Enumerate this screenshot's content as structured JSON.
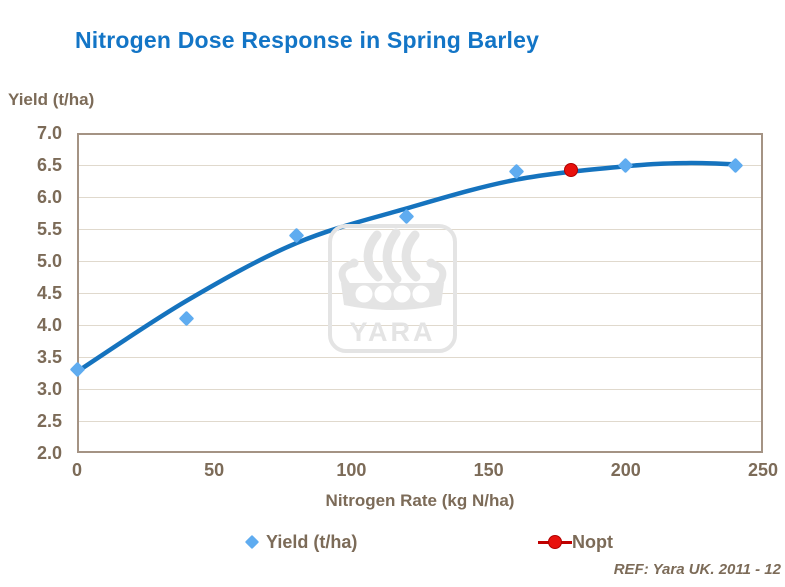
{
  "watermark": {
    "text": "YARA"
  },
  "footer": {
    "ref": "REF: Yara UK. 2011 - 12"
  },
  "colors": {
    "title_blue": "#1375C6",
    "curve_blue": "#1573BE",
    "yield_marker_blue": "#5FACF0",
    "nopt_red": "#E8110D",
    "nopt_line_red": "#C00000",
    "axis_text_brown": "#7C6B58",
    "plot_border": "#A49384",
    "gridline": "#E0D9CD",
    "watermark_gray": "#E4E4E4"
  },
  "chart_data": {
    "type": "scatter",
    "title": "Nitrogen Dose Response in Spring Barley",
    "xlabel": "Nitrogen Rate (kg N/ha)",
    "ylabel": "Yield (t/ha)",
    "xlim": [
      0,
      250
    ],
    "ylim": [
      2.0,
      7.0
    ],
    "x_ticks": [
      "0",
      "50",
      "100",
      "150",
      "200",
      "250"
    ],
    "y_ticks": [
      "7.0",
      "6.5",
      "6.0",
      "5.5",
      "5.0",
      "4.5",
      "4.0",
      "3.5",
      "3.0",
      "2.5",
      "2.0"
    ],
    "grid": "horizontal",
    "legend_position": "bottom",
    "series": [
      {
        "name": "Yield (t/ha)",
        "type": "scatter",
        "marker": "diamond",
        "color": "#5FACF0",
        "points": [
          [
            0,
            3.3
          ],
          [
            40,
            4.1
          ],
          [
            80,
            5.4
          ],
          [
            120,
            5.7
          ],
          [
            160,
            6.4
          ],
          [
            200,
            6.5
          ],
          [
            240,
            6.5
          ]
        ]
      },
      {
        "name": "Nopt",
        "type": "scatter",
        "marker": "circle",
        "color": "#E8110D",
        "points": [
          [
            180,
            6.42
          ]
        ]
      },
      {
        "name": "fitted response curve",
        "type": "line",
        "color": "#1573BE",
        "points": [
          [
            0,
            3.27
          ],
          [
            40,
            4.38
          ],
          [
            80,
            5.28
          ],
          [
            120,
            5.82
          ],
          [
            160,
            6.27
          ],
          [
            200,
            6.48
          ],
          [
            222,
            6.53
          ],
          [
            240,
            6.51
          ]
        ]
      }
    ]
  }
}
